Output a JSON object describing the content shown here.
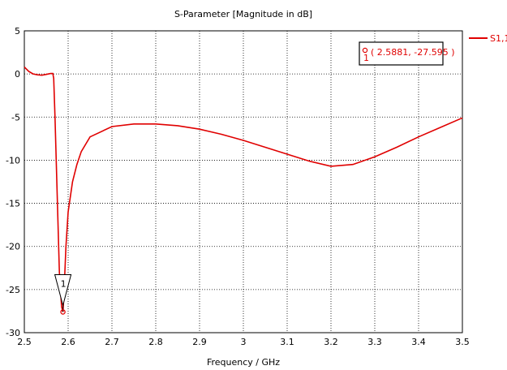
{
  "chart_data": {
    "type": "line",
    "title": "S-Parameter [Magnitude in dB]",
    "xlabel": "Frequency / GHz",
    "ylabel": "",
    "xlim": [
      2.5,
      3.5
    ],
    "ylim": [
      -30,
      5
    ],
    "xticks": [
      "2.5",
      "2.6",
      "2.7",
      "2.8",
      "2.9",
      "3",
      "3.1",
      "3.2",
      "3.3",
      "3.4",
      "3.5"
    ],
    "yticks": [
      "5",
      "0",
      "-5",
      "-10",
      "-15",
      "-20",
      "-25",
      "-30"
    ],
    "grid": true,
    "legend_position": "top-right",
    "series": [
      {
        "name": "S1,1",
        "color": "#e00000",
        "x": [
          2.5,
          2.51,
          2.52,
          2.53,
          2.54,
          2.55,
          2.56,
          2.565,
          2.567,
          2.57,
          2.575,
          2.58,
          2.585,
          2.5881,
          2.59,
          2.595,
          2.6,
          2.61,
          2.62,
          2.63,
          2.65,
          2.7,
          2.75,
          2.8,
          2.85,
          2.9,
          2.95,
          3.0,
          3.05,
          3.1,
          3.15,
          3.2,
          3.25,
          3.3,
          3.35,
          3.4,
          3.45,
          3.5
        ],
        "y": [
          0.8,
          0.3,
          0.0,
          -0.1,
          -0.15,
          -0.05,
          0.05,
          0.05,
          -0.5,
          -5.0,
          -14.0,
          -23.0,
          -27.0,
          -27.595,
          -26.0,
          -20.0,
          -16.0,
          -12.5,
          -10.5,
          -9.0,
          -7.3,
          -6.1,
          -5.8,
          -5.8,
          -6.0,
          -6.4,
          -7.0,
          -7.7,
          -8.5,
          -9.3,
          -10.1,
          -10.7,
          -10.5,
          -9.6,
          -8.5,
          -7.3,
          -6.2,
          -5.1
        ]
      }
    ],
    "annotations": [
      {
        "label": "1",
        "text": "( 2.5881, -27.595 )",
        "x": 2.5881,
        "y": -27.595
      }
    ]
  }
}
